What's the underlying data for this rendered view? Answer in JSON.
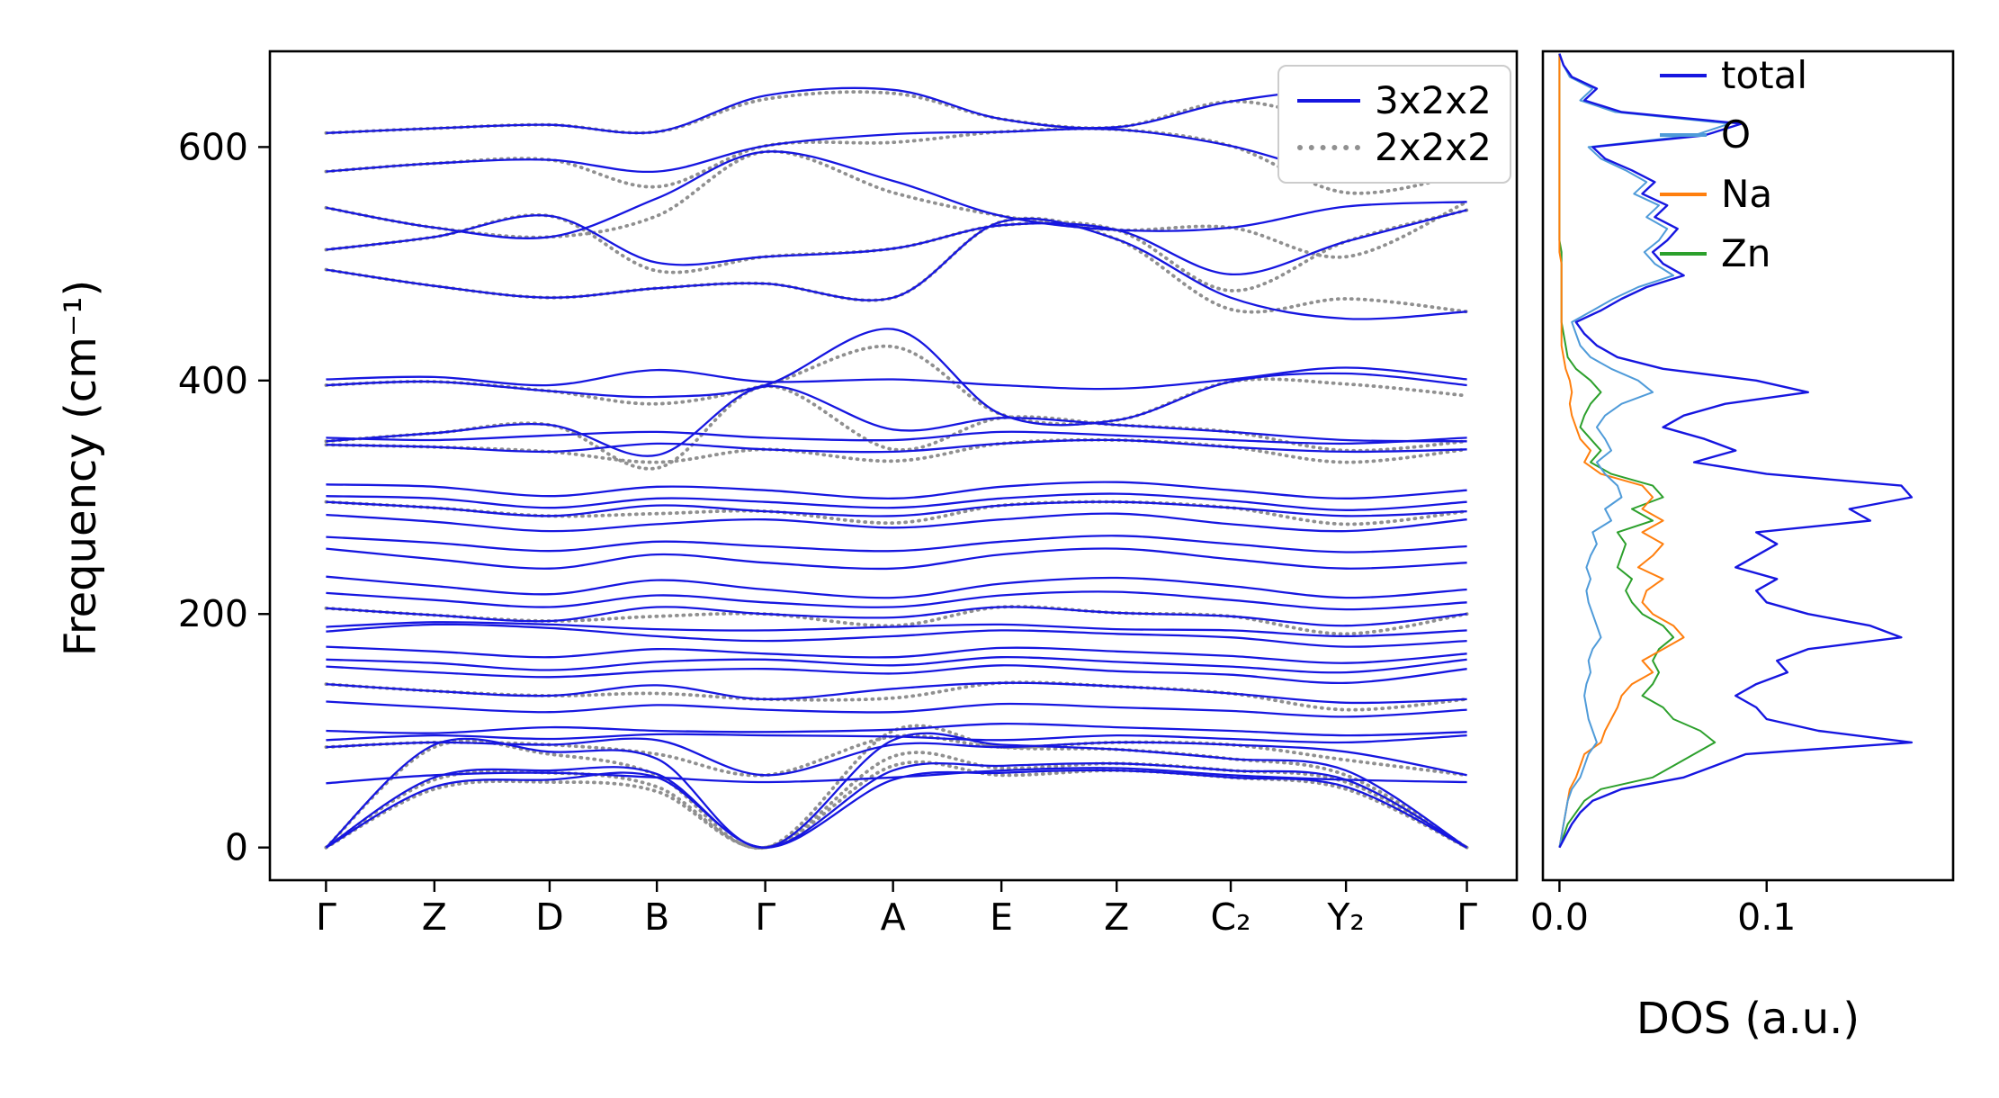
{
  "figure": {
    "background": "#ffffff",
    "frame_color": "#000000"
  },
  "chart_data": [
    {
      "type": "line",
      "panel": "phonon-band-structure",
      "title": "",
      "xlabel": "",
      "ylabel": "Frequency (cm⁻¹)",
      "ylim": [
        -28,
        682
      ],
      "yticks": [
        {
          "value": 0,
          "label": "0"
        },
        {
          "value": 200,
          "label": "200"
        },
        {
          "value": 400,
          "label": "400"
        },
        {
          "value": 600,
          "label": "600"
        }
      ],
      "kpath_labels": [
        "Γ",
        "Z",
        "D",
        "B",
        "Γ",
        "A",
        "E",
        "Z",
        "C₂",
        "Y₂",
        "Γ"
      ],
      "kpath_positions": [
        0,
        0.095,
        0.196,
        0.29,
        0.385,
        0.497,
        0.592,
        0.693,
        0.793,
        0.894,
        1.0
      ],
      "legend": [
        {
          "label": "3x2x2",
          "color": "#1616e0",
          "style": "solid"
        },
        {
          "label": "2x2x2",
          "color": "#909090",
          "style": "dotted"
        }
      ],
      "series": [
        {
          "name": "3x2x2",
          "color": "#1616e0",
          "style": "solid",
          "bands": [
            [
              0,
              52,
              58,
              60,
              0,
              58,
              64,
              66,
              60,
              52,
              0
            ],
            [
              0,
              60,
              66,
              63,
              0,
              66,
              70,
              72,
              66,
              58,
              0
            ],
            [
              0,
              88,
              82,
              76,
              0,
              92,
              88,
              84,
              76,
              66,
              0
            ],
            [
              55,
              62,
              64,
              60,
              56,
              60,
              66,
              68,
              62,
              58,
              56
            ],
            [
              86,
              90,
              88,
              92,
              62,
              88,
              86,
              90,
              88,
              82,
              62
            ],
            [
              92,
              96,
              93,
              97,
              96,
              95,
              92,
              96,
              93,
              90,
              96
            ],
            [
              100,
              98,
              103,
              100,
              99,
              101,
              106,
              103,
              100,
              96,
              99
            ],
            [
              125,
              120,
              116,
              122,
              118,
              116,
              123,
              120,
              117,
              112,
              118
            ],
            [
              140,
              134,
              130,
              139,
              127,
              136,
              141,
              138,
              132,
              124,
              127
            ],
            [
              155,
              150,
              146,
              151,
              153,
              149,
              156,
              151,
              148,
              141,
              153
            ],
            [
              161,
              158,
              152,
              159,
              161,
              156,
              163,
              159,
              155,
              150,
              161
            ],
            [
              172,
              168,
              163,
              170,
              166,
              163,
              171,
              168,
              164,
              158,
              166
            ],
            [
              185,
              191,
              188,
              181,
              177,
              181,
              186,
              183,
              180,
              172,
              177
            ],
            [
              189,
              193,
              191,
              187,
              186,
              189,
              191,
              187,
              186,
              181,
              186
            ],
            [
              205,
              199,
              194,
              206,
              200,
              197,
              206,
              201,
              198,
              190,
              200
            ],
            [
              218,
              212,
              206,
              216,
              210,
              206,
              216,
              219,
              212,
              204,
              210
            ],
            [
              232,
              224,
              217,
              229,
              221,
              214,
              226,
              231,
              224,
              214,
              221
            ],
            [
              256,
              247,
              239,
              251,
              244,
              239,
              251,
              256,
              247,
              239,
              244
            ],
            [
              266,
              261,
              254,
              262,
              258,
              254,
              262,
              267,
              260,
              253,
              258
            ],
            [
              285,
              279,
              271,
              277,
              281,
              274,
              281,
              286,
              277,
              271,
              281
            ],
            [
              296,
              291,
              284,
              293,
              288,
              284,
              293,
              296,
              291,
              284,
              288
            ],
            [
              301,
              299,
              291,
              299,
              296,
              291,
              299,
              303,
              297,
              289,
              296
            ],
            [
              311,
              309,
              301,
              309,
              306,
              299,
              309,
              313,
              306,
              299,
              306
            ],
            [
              345,
              343,
              339,
              346,
              341,
              339,
              346,
              349,
              343,
              339,
              341
            ],
            [
              351,
              349,
              353,
              356,
              351,
              349,
              356,
              353,
              349,
              346,
              351
            ],
            [
              348,
              355,
              362,
              336,
              395,
              358,
              368,
              362,
              356,
              349,
              348
            ],
            [
              396,
              399,
              391,
              386,
              396,
              444,
              371,
              366,
              399,
              406,
              396
            ],
            [
              401,
              403,
              396,
              409,
              399,
              401,
              396,
              393,
              401,
              411,
              401
            ],
            [
              495,
              481,
              471,
              479,
              483,
              471,
              536,
              521,
              471,
              453,
              459
            ],
            [
              512,
              523,
              541,
              501,
              506,
              513,
              533,
              529,
              491,
              519,
              546
            ],
            [
              548,
              531,
              523,
              556,
              596,
              571,
              541,
              529,
              531,
              549,
              553
            ],
            [
              579,
              586,
              589,
              579,
              601,
              611,
              613,
              615,
              601,
              576,
              577
            ],
            [
              612,
              616,
              619,
              613,
              644,
              649,
              624,
              617,
              639,
              649,
              641
            ]
          ]
        },
        {
          "name": "2x2x2",
          "color": "#909090",
          "style": "dotted",
          "bands": [
            [
              0,
              50,
              56,
              48,
              0,
              70,
              62,
              66,
              60,
              50,
              0
            ],
            [
              0,
              58,
              64,
              52,
              0,
              78,
              68,
              72,
              66,
              56,
              0
            ],
            [
              0,
              86,
              80,
              62,
              0,
              100,
              86,
              84,
              76,
              62,
              0
            ],
            [
              86,
              90,
              88,
              80,
              62,
              95,
              86,
              90,
              88,
              75,
              62
            ],
            [
              140,
              134,
              130,
              132,
              127,
              128,
              141,
              138,
              132,
              118,
              127
            ],
            [
              205,
              199,
              194,
              198,
              200,
              190,
              206,
              201,
              198,
              183,
              200
            ],
            [
              296,
              291,
              284,
              286,
              288,
              278,
              293,
              296,
              291,
              277,
              288
            ],
            [
              345,
              343,
              339,
              330,
              341,
              331,
              346,
              349,
              343,
              330,
              341
            ],
            [
              348,
              355,
              362,
              325,
              395,
              341,
              368,
              362,
              356,
              340,
              348
            ],
            [
              396,
              399,
              391,
              380,
              396,
              429,
              371,
              366,
              399,
              397,
              387
            ],
            [
              495,
              481,
              471,
              479,
              483,
              471,
              536,
              521,
              461,
              470,
              459
            ],
            [
              512,
              523,
              541,
              494,
              506,
              513,
              533,
              529,
              477,
              519,
              546
            ],
            [
              548,
              531,
              523,
              541,
              596,
              561,
              541,
              529,
              531,
              506,
              553
            ],
            [
              579,
              586,
              589,
              566,
              601,
              604,
              613,
              615,
              601,
              561,
              577
            ],
            [
              612,
              616,
              619,
              613,
              641,
              646,
              624,
              617,
              639,
              625,
              641
            ]
          ]
        }
      ]
    },
    {
      "type": "line",
      "panel": "phonon-dos",
      "title": "",
      "xlabel": "DOS (a.u.)",
      "ylabel": "",
      "xlim": [
        -0.008,
        0.19
      ],
      "xticks": [
        {
          "value": 0.0,
          "label": "0.0"
        },
        {
          "value": 0.1,
          "label": "0.1"
        }
      ],
      "frequency_step": 10,
      "frequency_grid": [
        0,
        10,
        20,
        30,
        40,
        50,
        60,
        70,
        80,
        90,
        100,
        110,
        120,
        130,
        140,
        150,
        160,
        170,
        180,
        190,
        200,
        210,
        220,
        230,
        240,
        250,
        260,
        270,
        280,
        290,
        300,
        310,
        320,
        330,
        340,
        350,
        360,
        370,
        380,
        390,
        400,
        410,
        420,
        430,
        440,
        450,
        460,
        470,
        480,
        490,
        500,
        510,
        520,
        530,
        540,
        550,
        560,
        570,
        580,
        590,
        600,
        610,
        620,
        630,
        640,
        650,
        660,
        670,
        680
      ],
      "series": [
        {
          "name": "total",
          "color": "#1616e0",
          "values": [
            0.0,
            0.003,
            0.006,
            0.01,
            0.016,
            0.03,
            0.06,
            0.075,
            0.09,
            0.17,
            0.125,
            0.1,
            0.095,
            0.085,
            0.095,
            0.11,
            0.105,
            0.12,
            0.165,
            0.15,
            0.12,
            0.1,
            0.095,
            0.105,
            0.085,
            0.095,
            0.105,
            0.095,
            0.15,
            0.14,
            0.17,
            0.165,
            0.1,
            0.065,
            0.085,
            0.07,
            0.05,
            0.06,
            0.08,
            0.12,
            0.095,
            0.05,
            0.028,
            0.018,
            0.012,
            0.008,
            0.02,
            0.03,
            0.042,
            0.06,
            0.05,
            0.045,
            0.052,
            0.057,
            0.046,
            0.052,
            0.04,
            0.046,
            0.035,
            0.022,
            0.016,
            0.07,
            0.088,
            0.03,
            0.012,
            0.018,
            0.006,
            0.002,
            0.0
          ]
        },
        {
          "name": "O",
          "color": "#4f9bd9",
          "values": [
            0.0,
            0.001,
            0.002,
            0.003,
            0.004,
            0.006,
            0.01,
            0.012,
            0.014,
            0.018,
            0.016,
            0.014,
            0.013,
            0.012,
            0.013,
            0.015,
            0.014,
            0.016,
            0.02,
            0.018,
            0.016,
            0.014,
            0.013,
            0.015,
            0.013,
            0.015,
            0.018,
            0.016,
            0.025,
            0.022,
            0.03,
            0.028,
            0.022,
            0.018,
            0.025,
            0.022,
            0.018,
            0.022,
            0.03,
            0.045,
            0.038,
            0.025,
            0.015,
            0.01,
            0.008,
            0.006,
            0.016,
            0.026,
            0.038,
            0.055,
            0.046,
            0.041,
            0.048,
            0.052,
            0.042,
            0.048,
            0.036,
            0.042,
            0.032,
            0.02,
            0.014,
            0.065,
            0.082,
            0.027,
            0.01,
            0.016,
            0.005,
            0.002,
            0.0
          ]
        },
        {
          "name": "Na",
          "color": "#ff7f0e",
          "values": [
            0.0,
            0.001,
            0.002,
            0.003,
            0.004,
            0.005,
            0.008,
            0.01,
            0.012,
            0.02,
            0.022,
            0.025,
            0.028,
            0.03,
            0.035,
            0.045,
            0.04,
            0.05,
            0.06,
            0.055,
            0.045,
            0.04,
            0.042,
            0.05,
            0.038,
            0.045,
            0.05,
            0.04,
            0.05,
            0.04,
            0.045,
            0.04,
            0.02,
            0.012,
            0.015,
            0.01,
            0.008,
            0.006,
            0.005,
            0.006,
            0.005,
            0.003,
            0.002,
            0.001,
            0.001,
            0.001,
            0.001,
            0.001,
            0.001,
            0.001,
            0.001,
            0.0,
            0.0,
            0.0,
            0.0,
            0.0,
            0.0,
            0.0,
            0.0,
            0.0,
            0.0,
            0.0,
            0.0,
            0.0,
            0.0,
            0.0,
            0.0,
            0.0,
            0.0
          ]
        },
        {
          "name": "Zn",
          "color": "#2ca02c",
          "values": [
            0.0,
            0.002,
            0.004,
            0.008,
            0.012,
            0.02,
            0.045,
            0.055,
            0.065,
            0.075,
            0.068,
            0.055,
            0.05,
            0.04,
            0.045,
            0.048,
            0.045,
            0.048,
            0.055,
            0.05,
            0.04,
            0.035,
            0.032,
            0.035,
            0.028,
            0.03,
            0.032,
            0.028,
            0.045,
            0.035,
            0.05,
            0.045,
            0.025,
            0.015,
            0.02,
            0.015,
            0.01,
            0.012,
            0.015,
            0.02,
            0.015,
            0.008,
            0.004,
            0.003,
            0.002,
            0.001,
            0.001,
            0.001,
            0.001,
            0.001,
            0.001,
            0.001,
            0.0,
            0.0,
            0.0,
            0.0,
            0.0,
            0.0,
            0.0,
            0.0,
            0.0,
            0.0,
            0.0,
            0.0,
            0.0,
            0.0,
            0.0,
            0.0,
            0.0
          ]
        }
      ]
    }
  ]
}
